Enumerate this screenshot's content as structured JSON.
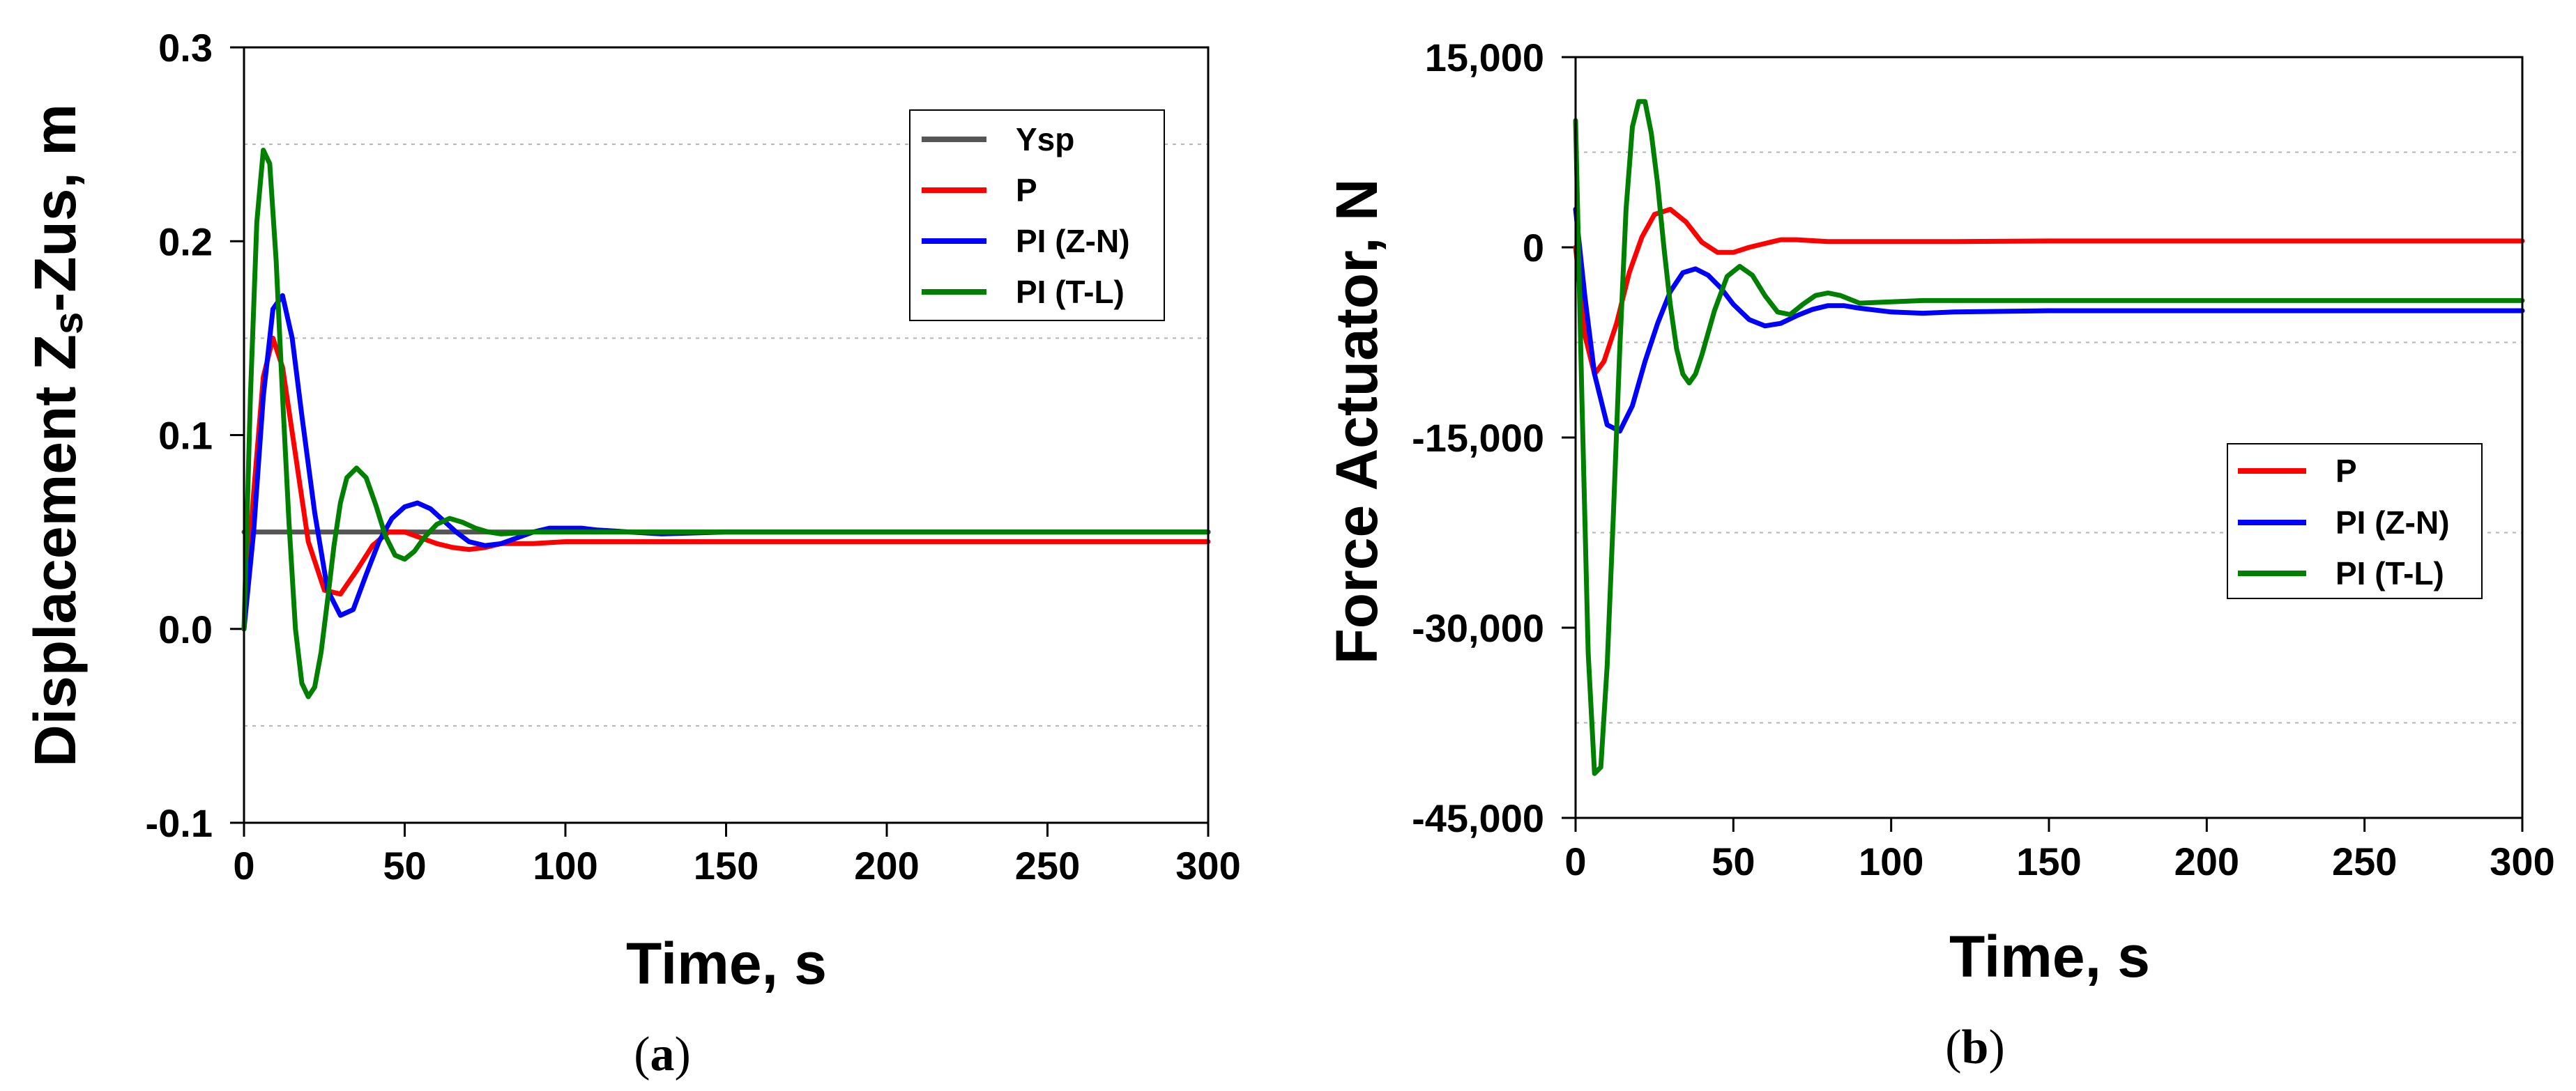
{
  "chart_data": [
    {
      "type": "line",
      "panel_label_open": "(",
      "panel_label_letter": "a",
      "panel_label_close": ")",
      "xlabel": "Time, s",
      "ylabel_parts": [
        "Displacement Z",
        "s",
        "-Zus, m"
      ],
      "xlim": [
        0,
        300
      ],
      "ylim": [
        -0.1,
        0.3
      ],
      "xticks": [
        0,
        50,
        100,
        150,
        200,
        250,
        300
      ],
      "xtick_labels": [
        "0",
        "50",
        "100",
        "150",
        "200",
        "250",
        "300"
      ],
      "yticks": [
        -0.1,
        0.0,
        0.1,
        0.2,
        0.3
      ],
      "ytick_labels": [
        "-0.1",
        "0.0",
        "0.1",
        "0.2",
        "0.3"
      ],
      "grid_y": [
        -0.05,
        0.05,
        0.15,
        0.25
      ],
      "legend_position": "top-right",
      "series": [
        {
          "name": "Ysp",
          "color": "#555555",
          "x": [
            0,
            300
          ],
          "y": [
            0.05,
            0.05
          ]
        },
        {
          "name": "P",
          "color": "#ff0000",
          "x": [
            0,
            3,
            6,
            9,
            12,
            16,
            20,
            25,
            30,
            35,
            40,
            45,
            50,
            55,
            60,
            65,
            70,
            75,
            80,
            90,
            100,
            120,
            150,
            200,
            300
          ],
          "y": [
            0.0,
            0.07,
            0.13,
            0.15,
            0.135,
            0.09,
            0.045,
            0.02,
            0.018,
            0.03,
            0.043,
            0.05,
            0.05,
            0.047,
            0.044,
            0.042,
            0.041,
            0.042,
            0.044,
            0.044,
            0.045,
            0.045,
            0.045,
            0.045,
            0.045
          ]
        },
        {
          "name": "PI (Z-N)",
          "color": "#0000ff",
          "x": [
            0,
            3,
            6,
            9,
            12,
            15,
            18,
            22,
            26,
            30,
            34,
            38,
            42,
            46,
            50,
            54,
            58,
            62,
            66,
            70,
            75,
            80,
            85,
            90,
            95,
            100,
            105,
            110,
            120,
            130,
            150,
            200,
            300
          ],
          "y": [
            0.0,
            0.05,
            0.12,
            0.165,
            0.172,
            0.15,
            0.11,
            0.06,
            0.02,
            0.007,
            0.01,
            0.028,
            0.045,
            0.057,
            0.063,
            0.065,
            0.062,
            0.056,
            0.05,
            0.045,
            0.043,
            0.044,
            0.047,
            0.05,
            0.052,
            0.052,
            0.052,
            0.051,
            0.05,
            0.049,
            0.05,
            0.05,
            0.05
          ]
        },
        {
          "name": "PI (T-L)",
          "color": "#008000",
          "x": [
            0,
            2,
            4,
            6,
            8,
            10,
            12,
            14,
            16,
            18,
            20,
            22,
            24,
            26,
            28,
            30,
            32,
            35,
            38,
            41,
            44,
            47,
            50,
            53,
            56,
            60,
            64,
            68,
            72,
            76,
            80,
            90,
            100,
            120,
            150,
            200,
            300
          ],
          "y": [
            0.0,
            0.12,
            0.21,
            0.247,
            0.24,
            0.19,
            0.12,
            0.055,
            0.0,
            -0.028,
            -0.035,
            -0.03,
            -0.012,
            0.015,
            0.043,
            0.065,
            0.078,
            0.083,
            0.078,
            0.064,
            0.048,
            0.038,
            0.036,
            0.04,
            0.047,
            0.054,
            0.057,
            0.055,
            0.052,
            0.05,
            0.049,
            0.05,
            0.05,
            0.05,
            0.05,
            0.05,
            0.05
          ]
        }
      ]
    },
    {
      "type": "line",
      "panel_label_open": "(",
      "panel_label_letter": "b",
      "panel_label_close": ")",
      "xlabel": "Time, s",
      "ylabel": "Force Actuator, N",
      "xlim": [
        0,
        300
      ],
      "ylim": [
        -45000,
        15000
      ],
      "xticks": [
        0,
        50,
        100,
        150,
        200,
        250,
        300
      ],
      "xtick_labels": [
        "0",
        "50",
        "100",
        "150",
        "200",
        "250",
        "300"
      ],
      "yticks": [
        -45000,
        -30000,
        -15000,
        0,
        15000
      ],
      "ytick_labels": [
        "-45,000",
        "-30,000",
        "-15,000",
        "0",
        "15,000"
      ],
      "grid_y": [
        -37500,
        -22500,
        -7500,
        7500
      ],
      "legend_position": "center-right",
      "series": [
        {
          "name": "P",
          "color": "#ff0000",
          "x": [
            0,
            3,
            6,
            9,
            13,
            17,
            21,
            25,
            30,
            35,
            40,
            45,
            50,
            55,
            60,
            65,
            70,
            80,
            90,
            100,
            120,
            150,
            200,
            300
          ],
          "y": [
            0,
            -7000,
            -10000,
            -9000,
            -6000,
            -2000,
            800,
            2600,
            3000,
            2000,
            400,
            -400,
            -400,
            0,
            300,
            600,
            600,
            450,
            450,
            450,
            450,
            500,
            500,
            500
          ]
        },
        {
          "name": "PI (Z-N)",
          "color": "#0000ff",
          "x": [
            0,
            3,
            6,
            10,
            14,
            18,
            22,
            26,
            30,
            34,
            38,
            42,
            46,
            50,
            55,
            60,
            65,
            70,
            75,
            80,
            85,
            90,
            100,
            110,
            120,
            150,
            200,
            300
          ],
          "y": [
            3000,
            -4000,
            -10000,
            -14000,
            -14500,
            -12500,
            -9000,
            -6000,
            -3500,
            -2000,
            -1700,
            -2200,
            -3200,
            -4500,
            -5700,
            -6200,
            -6000,
            -5400,
            -4900,
            -4600,
            -4600,
            -4800,
            -5100,
            -5200,
            -5100,
            -5000,
            -5000,
            -5000
          ]
        },
        {
          "name": "PI (T-L)",
          "color": "#008000",
          "x": [
            0,
            2,
            4,
            6,
            8,
            10,
            12,
            14,
            16,
            18,
            20,
            22,
            24,
            26,
            28,
            30,
            32,
            34,
            36,
            38,
            40,
            44,
            48,
            52,
            56,
            60,
            64,
            68,
            72,
            76,
            80,
            84,
            90,
            100,
            110,
            120,
            150,
            200,
            300
          ],
          "y": [
            10000,
            -12000,
            -32000,
            -41500,
            -41000,
            -33000,
            -21000,
            -8000,
            3000,
            9500,
            11500,
            11500,
            9000,
            5000,
            0,
            -4500,
            -8000,
            -10000,
            -10700,
            -10000,
            -8500,
            -5000,
            -2300,
            -1500,
            -2200,
            -3800,
            -5100,
            -5300,
            -4500,
            -3800,
            -3600,
            -3800,
            -4400,
            -4300,
            -4200,
            -4200,
            -4200,
            -4200,
            -4200
          ]
        }
      ]
    }
  ]
}
